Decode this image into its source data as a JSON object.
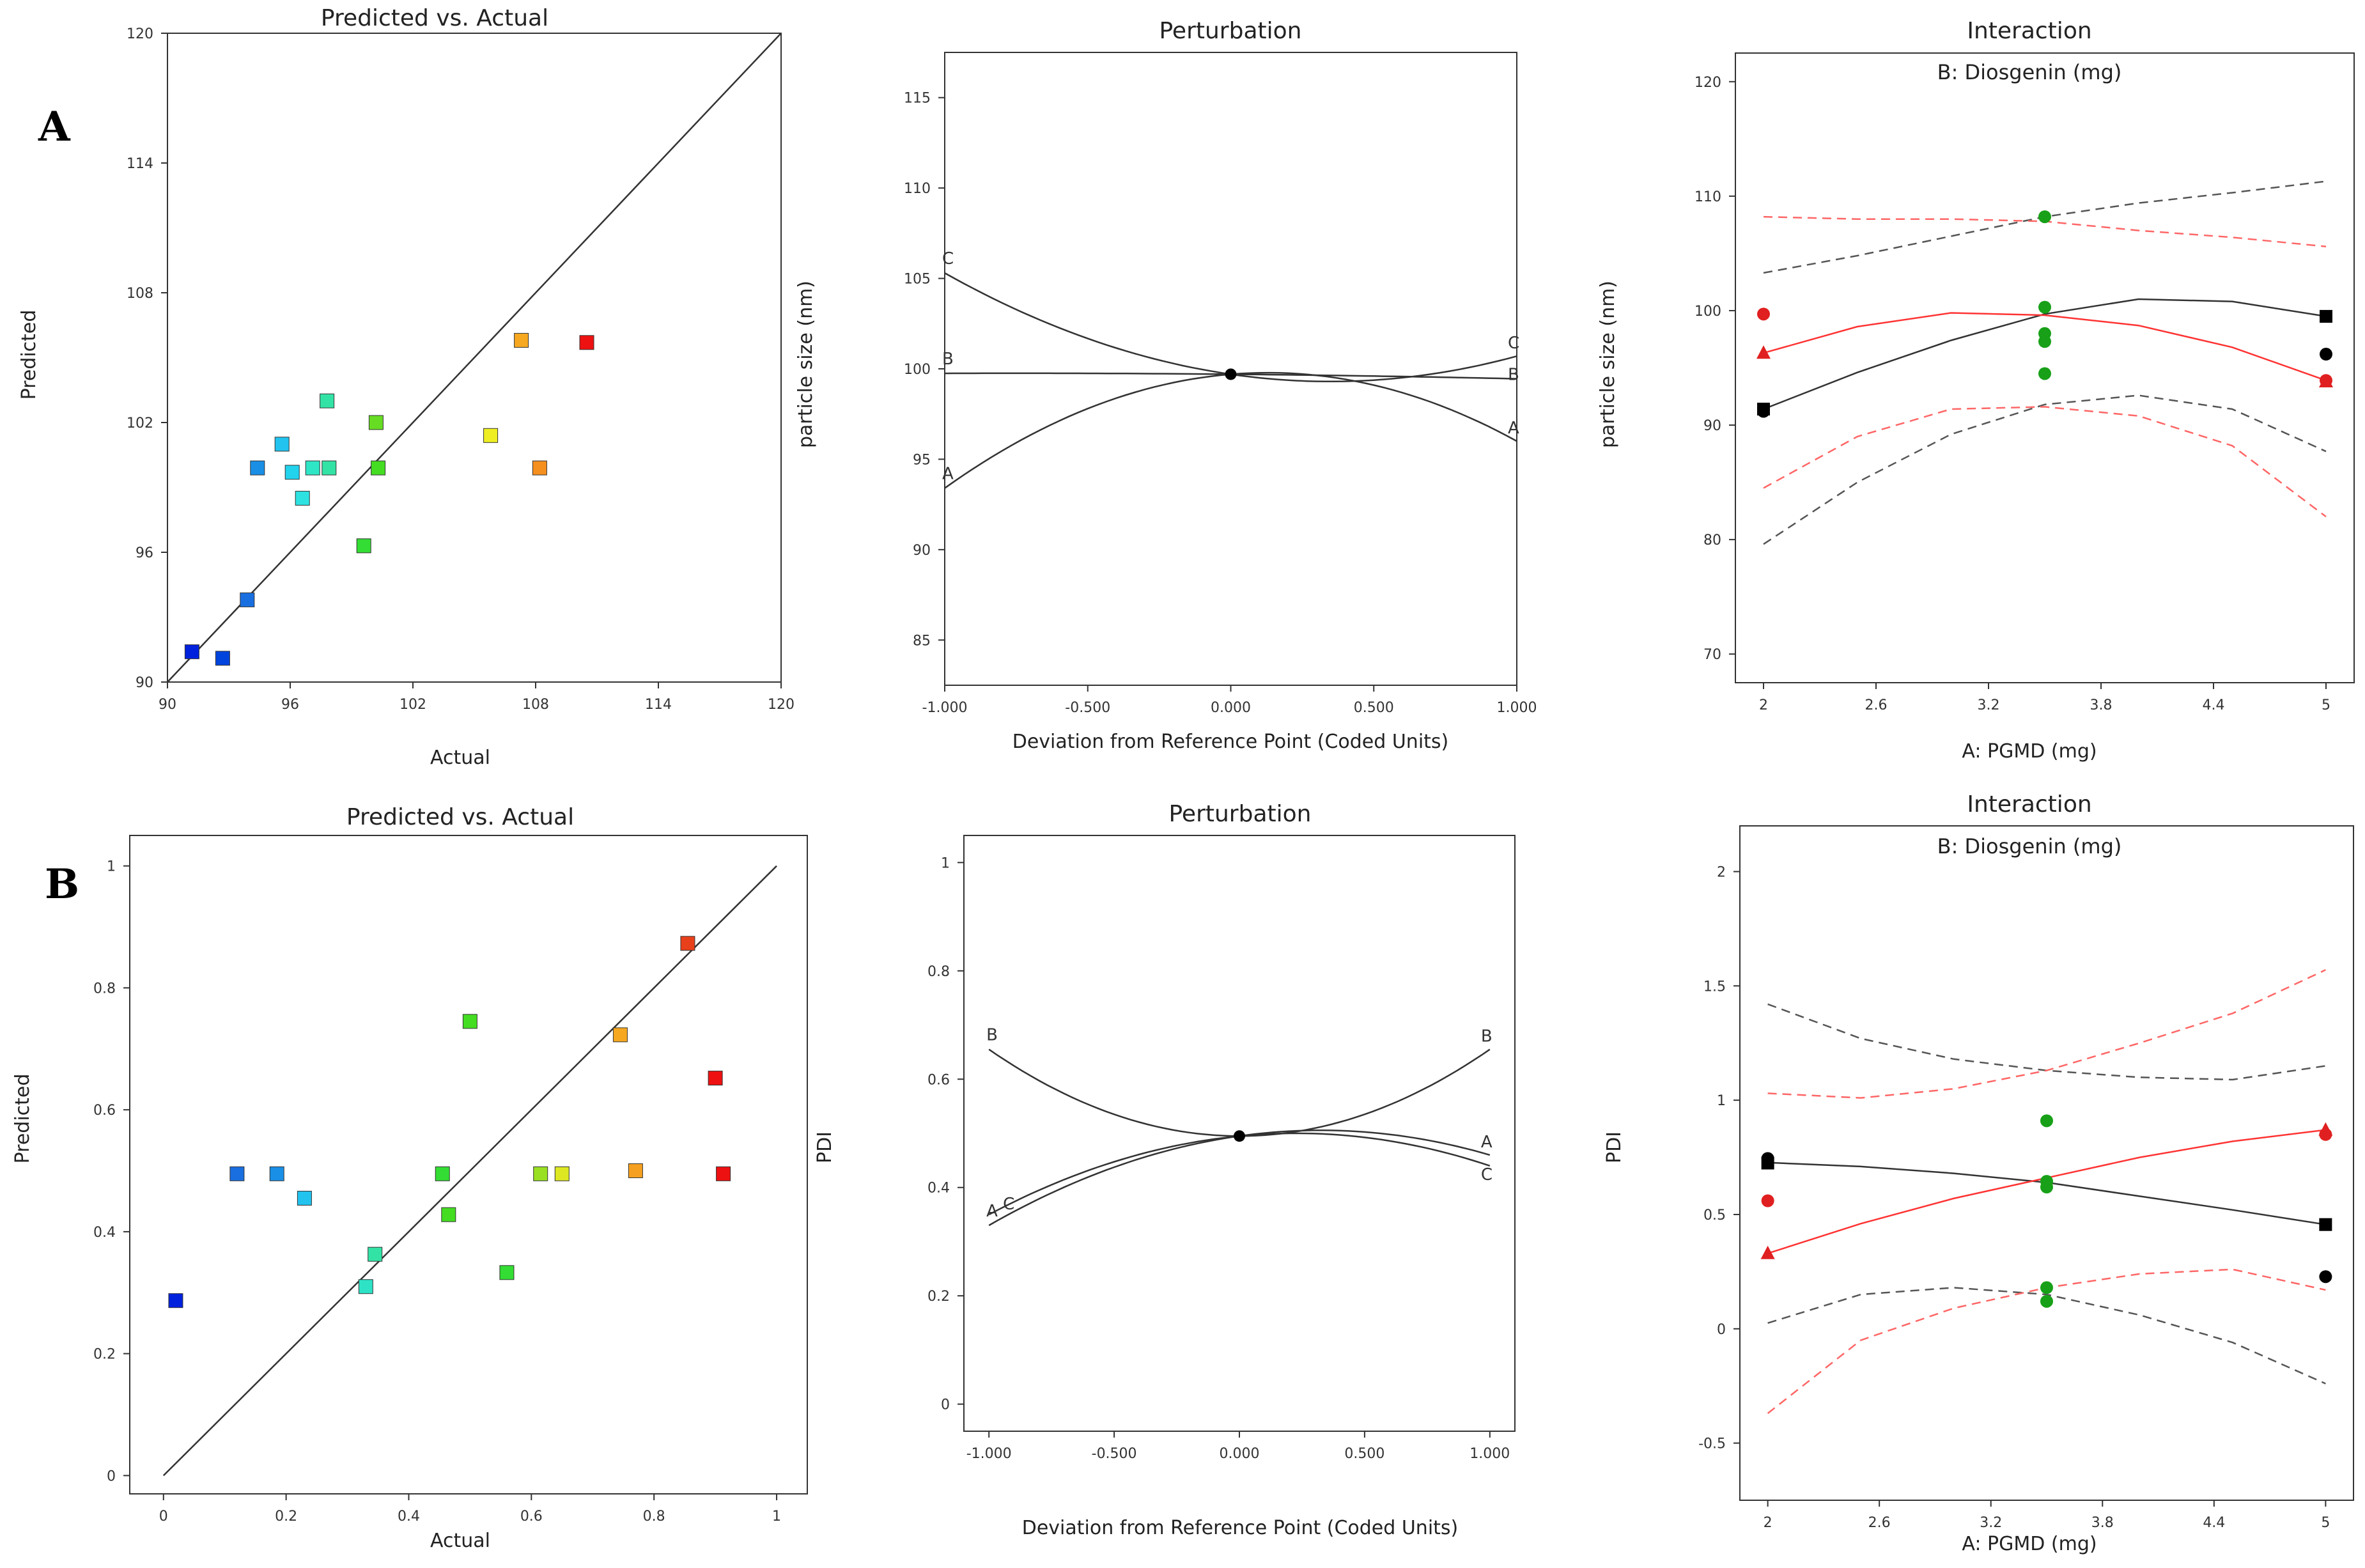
{
  "panel_labels": {
    "A": "A",
    "B": "B"
  },
  "colors": {
    "line": "#333333",
    "red": "#ff3333",
    "red_dash": "#ff6666",
    "black_dash": "#555555",
    "green": "#18a018",
    "black": "#000000",
    "red_marker": "#e02020"
  },
  "chart_data": [
    {
      "id": "A1",
      "type": "scatter",
      "title": "Predicted vs. Actual",
      "xlabel": "Actual",
      "ylabel": "Predicted",
      "xlim": [
        90,
        120
      ],
      "ylim": [
        90,
        120
      ],
      "xticks": [
        90,
        96,
        102,
        108,
        114,
        120
      ],
      "yticks": [
        90,
        96,
        102,
        108,
        114,
        120
      ],
      "tick_labels_x": [
        "90",
        "96",
        "102",
        "108",
        "114",
        "120"
      ],
      "tick_labels_y": [
        "90",
        "96",
        "102",
        "108",
        "114",
        "120"
      ],
      "reference_line": [
        [
          90,
          90
        ],
        [
          120,
          120
        ]
      ],
      "points": [
        {
          "x": 91.2,
          "y": 91.4,
          "color": "#0022dd"
        },
        {
          "x": 92.7,
          "y": 91.1,
          "color": "#0044dd"
        },
        {
          "x": 93.9,
          "y": 93.8,
          "color": "#1a6fe0"
        },
        {
          "x": 94.4,
          "y": 99.9,
          "color": "#1a8fe6"
        },
        {
          "x": 95.6,
          "y": 101.0,
          "color": "#22c3ee"
        },
        {
          "x": 96.1,
          "y": 99.7,
          "color": "#22d3ee"
        },
        {
          "x": 96.6,
          "y": 98.5,
          "color": "#2ee2e2"
        },
        {
          "x": 97.1,
          "y": 99.9,
          "color": "#2ee6c6"
        },
        {
          "x": 97.8,
          "y": 103.0,
          "color": "#33e3a6"
        },
        {
          "x": 97.9,
          "y": 99.9,
          "color": "#33e3a6"
        },
        {
          "x": 99.6,
          "y": 96.3,
          "color": "#33dd33"
        },
        {
          "x": 100.2,
          "y": 102.0,
          "color": "#66dd22"
        },
        {
          "x": 100.3,
          "y": 99.9,
          "color": "#44dd22"
        },
        {
          "x": 105.8,
          "y": 101.4,
          "color": "#eeee22"
        },
        {
          "x": 107.3,
          "y": 105.8,
          "color": "#f5a820"
        },
        {
          "x": 108.2,
          "y": 99.9,
          "color": "#f5901e"
        },
        {
          "x": 110.5,
          "y": 105.7,
          "color": "#ee1111"
        }
      ]
    },
    {
      "id": "A2",
      "type": "line",
      "title": "Perturbation",
      "xlabel": "Deviation from Reference Point (Coded Units)",
      "ylabel": "particle size (nm)",
      "xlim": [
        -1,
        1
      ],
      "ylim": [
        82.5,
        117.5
      ],
      "xticks": [
        -1,
        -0.5,
        0,
        0.5,
        1
      ],
      "yticks": [
        85,
        90,
        95,
        100,
        105,
        110,
        115
      ],
      "tick_labels_x": [
        "-1.000",
        "-0.500",
        "0.000",
        "0.500",
        "1.000"
      ],
      "tick_labels_y": [
        "85",
        "90",
        "95",
        "100",
        "105",
        "110",
        "115"
      ],
      "series": [
        {
          "name": "A",
          "a": -5.0,
          "b": 1.3,
          "c": 99.7,
          "label_start": "A",
          "label_end": "A"
        },
        {
          "name": "B",
          "a": -0.1,
          "b": -0.15,
          "c": 99.7,
          "label_start": "B",
          "label_end": "B"
        },
        {
          "name": "C",
          "a": 3.3,
          "b": -2.3,
          "c": 99.7,
          "label_start": "C",
          "label_end": "C"
        }
      ],
      "center_point": [
        0,
        99.7
      ]
    },
    {
      "id": "A3",
      "type": "line",
      "title": "Interaction",
      "subtitle": "B: Diosgenin (mg)",
      "xlabel": "A: PGMD (mg)",
      "ylabel": "particle size (nm)",
      "xlim": [
        1.85,
        5.15
      ],
      "ylim": [
        67.5,
        122.5
      ],
      "xticks": [
        2,
        2.6,
        3.2,
        3.8,
        4.4,
        5
      ],
      "yticks": [
        70,
        80,
        90,
        100,
        110,
        120
      ],
      "tick_labels_x": [
        "2",
        "2.6",
        "3.2",
        "3.8",
        "4.4",
        "5"
      ],
      "tick_labels_y": [
        "70",
        "80",
        "90",
        "100",
        "110",
        "120"
      ],
      "curves": [
        {
          "name": "black-fit",
          "points": [
            [
              2,
              91.4
            ],
            [
              2.5,
              94.6
            ],
            [
              3,
              97.4
            ],
            [
              3.5,
              99.7
            ],
            [
              4,
              101.0
            ],
            [
              4.5,
              100.8
            ],
            [
              5,
              99.5
            ]
          ],
          "style": "solid",
          "color": "#333333"
        },
        {
          "name": "black-upper",
          "points": [
            [
              2,
              103.3
            ],
            [
              2.5,
              104.8
            ],
            [
              3,
              106.5
            ],
            [
              3.5,
              108.2
            ],
            [
              4,
              109.4
            ],
            [
              4.5,
              110.3
            ],
            [
              5,
              111.3
            ]
          ],
          "style": "dash",
          "color": "#555555"
        },
        {
          "name": "black-lower",
          "points": [
            [
              2,
              79.6
            ],
            [
              2.5,
              85.0
            ],
            [
              3,
              89.2
            ],
            [
              3.5,
              91.8
            ],
            [
              4,
              92.6
            ],
            [
              4.5,
              91.4
            ],
            [
              5,
              87.7
            ]
          ],
          "style": "dash",
          "color": "#555555"
        },
        {
          "name": "red-fit",
          "points": [
            [
              2,
              96.3
            ],
            [
              2.5,
              98.6
            ],
            [
              3,
              99.8
            ],
            [
              3.5,
              99.6
            ],
            [
              4,
              98.7
            ],
            [
              4.5,
              96.8
            ],
            [
              5,
              93.9
            ]
          ],
          "style": "solid",
          "color": "#ff3333"
        },
        {
          "name": "red-upper",
          "points": [
            [
              2,
              108.2
            ],
            [
              2.5,
              108.0
            ],
            [
              3,
              108.0
            ],
            [
              3.5,
              107.8
            ],
            [
              4,
              107.0
            ],
            [
              4.5,
              106.4
            ],
            [
              5,
              105.6
            ]
          ],
          "style": "dash",
          "color": "#ff6666"
        },
        {
          "name": "red-lower",
          "points": [
            [
              2,
              84.5
            ],
            [
              2.5,
              89.0
            ],
            [
              3,
              91.4
            ],
            [
              3.5,
              91.6
            ],
            [
              4,
              90.8
            ],
            [
              4.5,
              88.2
            ],
            [
              5,
              82.0
            ]
          ],
          "style": "dash",
          "color": "#ff6666"
        }
      ],
      "markers": [
        {
          "x": 2,
          "y": 99.7,
          "shape": "circle",
          "color": "#e02020"
        },
        {
          "x": 2,
          "y": 96.3,
          "shape": "triangle",
          "color": "#e02020"
        },
        {
          "x": 2,
          "y": 91.4,
          "shape": "square",
          "color": "#000000"
        },
        {
          "x": 2,
          "y": 91.2,
          "shape": "circle",
          "color": "#000000"
        },
        {
          "x": 3.5,
          "y": 108.2,
          "shape": "circle",
          "color": "#18a018"
        },
        {
          "x": 3.5,
          "y": 100.3,
          "shape": "circle",
          "color": "#18a018"
        },
        {
          "x": 3.5,
          "y": 98.0,
          "shape": "circle",
          "color": "#18a018"
        },
        {
          "x": 3.5,
          "y": 97.3,
          "shape": "circle",
          "color": "#18a018"
        },
        {
          "x": 3.5,
          "y": 94.5,
          "shape": "circle",
          "color": "#18a018"
        },
        {
          "x": 5,
          "y": 99.5,
          "shape": "square",
          "color": "#000000"
        },
        {
          "x": 5,
          "y": 96.2,
          "shape": "circle",
          "color": "#000000"
        },
        {
          "x": 5,
          "y": 93.9,
          "shape": "circle",
          "color": "#e02020"
        },
        {
          "x": 5,
          "y": 93.8,
          "shape": "triangle",
          "color": "#e02020"
        }
      ]
    },
    {
      "id": "B1",
      "type": "scatter",
      "title": "Predicted vs. Actual",
      "xlabel": "Actual",
      "ylabel": "Predicted",
      "xlim": [
        -0.055,
        1.05
      ],
      "ylim": [
        -0.03,
        1.05
      ],
      "xticks": [
        0,
        0.2,
        0.4,
        0.6,
        0.8,
        1
      ],
      "yticks": [
        0,
        0.2,
        0.4,
        0.6,
        0.8,
        1
      ],
      "tick_labels_x": [
        "0",
        "0.2",
        "0.4",
        "0.6",
        "0.8",
        "1"
      ],
      "tick_labels_y": [
        "0",
        "0.2",
        "0.4",
        "0.6",
        "0.8",
        "1"
      ],
      "reference_line": [
        [
          0,
          0
        ],
        [
          1,
          1
        ]
      ],
      "points": [
        {
          "x": 0.02,
          "y": 0.287,
          "color": "#0022dd"
        },
        {
          "x": 0.12,
          "y": 0.495,
          "color": "#1a6fe0"
        },
        {
          "x": 0.185,
          "y": 0.495,
          "color": "#1a8fe6"
        },
        {
          "x": 0.23,
          "y": 0.455,
          "color": "#22c3ee"
        },
        {
          "x": 0.33,
          "y": 0.31,
          "color": "#2ee2c6"
        },
        {
          "x": 0.345,
          "y": 0.363,
          "color": "#33e3a6"
        },
        {
          "x": 0.455,
          "y": 0.495,
          "color": "#33dd33"
        },
        {
          "x": 0.465,
          "y": 0.428,
          "color": "#44dd22"
        },
        {
          "x": 0.5,
          "y": 0.745,
          "color": "#44dd22"
        },
        {
          "x": 0.56,
          "y": 0.333,
          "color": "#33dd33"
        },
        {
          "x": 0.615,
          "y": 0.495,
          "color": "#99e022"
        },
        {
          "x": 0.65,
          "y": 0.495,
          "color": "#dde822"
        },
        {
          "x": 0.745,
          "y": 0.723,
          "color": "#f5a820"
        },
        {
          "x": 0.77,
          "y": 0.5,
          "color": "#f5a020"
        },
        {
          "x": 0.855,
          "y": 0.873,
          "color": "#e8401a"
        },
        {
          "x": 0.9,
          "y": 0.652,
          "color": "#ee1111"
        },
        {
          "x": 0.913,
          "y": 0.495,
          "color": "#ee1111"
        }
      ]
    },
    {
      "id": "B2",
      "type": "line",
      "title": "Perturbation",
      "xlabel": "Deviation from Reference Point (Coded Units)",
      "ylabel": "PDI",
      "xlim": [
        -1.1,
        1.1
      ],
      "ylim": [
        -0.05,
        1.05
      ],
      "xticks": [
        -1,
        -0.5,
        0,
        0.5,
        1
      ],
      "yticks": [
        0,
        0.2,
        0.4,
        0.6,
        0.8,
        1
      ],
      "tick_labels_x": [
        "-1.000",
        "-0.500",
        "0.000",
        "0.500",
        "1.000"
      ],
      "tick_labels_y": [
        "0",
        "0.2",
        "0.4",
        "0.6",
        "0.8",
        "1"
      ],
      "series": [
        {
          "name": "A",
          "a": -0.1,
          "b": 0.065,
          "c": 0.495,
          "label_start": "A",
          "label_end": "A"
        },
        {
          "name": "B",
          "a": 0.16,
          "b": 0.0,
          "c": 0.495,
          "label_start": "B",
          "label_end": "B"
        },
        {
          "name": "C",
          "a": -0.1,
          "b": 0.045,
          "c": 0.495,
          "label_start": "C",
          "label_end": "C"
        }
      ],
      "center_point": [
        0,
        0.495
      ]
    },
    {
      "id": "B3",
      "type": "line",
      "title": "Interaction",
      "subtitle": "B: Diosgenin (mg)",
      "xlabel": "A: PGMD (mg)",
      "ylabel": "PDI",
      "xlim": [
        1.85,
        5.15
      ],
      "ylim": [
        -0.75,
        2.2
      ],
      "xticks": [
        2,
        2.6,
        3.2,
        3.8,
        4.4,
        5
      ],
      "yticks": [
        -0.5,
        0,
        0.5,
        1,
        1.5,
        2
      ],
      "tick_labels_x": [
        "2",
        "2.6",
        "3.2",
        "3.8",
        "4.4",
        "5"
      ],
      "tick_labels_y": [
        "-0.5",
        "0",
        "0.5",
        "1",
        "1.5",
        "2"
      ],
      "curves": [
        {
          "name": "black-fit",
          "points": [
            [
              2,
              0.727
            ],
            [
              2.5,
              0.71
            ],
            [
              3,
              0.68
            ],
            [
              3.5,
              0.64
            ],
            [
              4,
              0.58
            ],
            [
              4.5,
              0.52
            ],
            [
              5,
              0.456
            ]
          ],
          "style": "solid",
          "color": "#333333"
        },
        {
          "name": "black-upper",
          "points": [
            [
              2,
              1.42
            ],
            [
              2.5,
              1.27
            ],
            [
              3,
              1.18
            ],
            [
              3.5,
              1.13
            ],
            [
              4,
              1.1
            ],
            [
              4.5,
              1.09
            ],
            [
              5,
              1.15
            ]
          ],
          "style": "dash",
          "color": "#555555"
        },
        {
          "name": "black-lower",
          "points": [
            [
              2,
              0.025
            ],
            [
              2.5,
              0.15
            ],
            [
              3,
              0.18
            ],
            [
              3.5,
              0.15
            ],
            [
              4,
              0.06
            ],
            [
              4.5,
              -0.06
            ],
            [
              5,
              -0.24
            ]
          ],
          "style": "dash",
          "color": "#555555"
        },
        {
          "name": "red-fit",
          "points": [
            [
              2,
              0.33
            ],
            [
              2.5,
              0.46
            ],
            [
              3,
              0.57
            ],
            [
              3.5,
              0.66
            ],
            [
              4,
              0.75
            ],
            [
              4.5,
              0.82
            ],
            [
              5,
              0.87
            ]
          ],
          "style": "solid",
          "color": "#ff3333"
        },
        {
          "name": "red-upper",
          "points": [
            [
              2,
              1.03
            ],
            [
              2.5,
              1.01
            ],
            [
              3,
              1.05
            ],
            [
              3.5,
              1.13
            ],
            [
              4,
              1.25
            ],
            [
              4.5,
              1.38
            ],
            [
              5,
              1.57
            ]
          ],
          "style": "dash",
          "color": "#ff6666"
        },
        {
          "name": "red-lower",
          "points": [
            [
              2,
              -0.37
            ],
            [
              2.5,
              -0.05
            ],
            [
              3,
              0.09
            ],
            [
              3.5,
              0.18
            ],
            [
              4,
              0.24
            ],
            [
              4.5,
              0.26
            ],
            [
              5,
              0.17
            ]
          ],
          "style": "dash",
          "color": "#ff6666"
        }
      ],
      "markers": [
        {
          "x": 2,
          "y": 0.745,
          "shape": "circle",
          "color": "#000000"
        },
        {
          "x": 2,
          "y": 0.725,
          "shape": "square",
          "color": "#000000"
        },
        {
          "x": 2,
          "y": 0.56,
          "shape": "circle",
          "color": "#e02020"
        },
        {
          "x": 2,
          "y": 0.33,
          "shape": "triangle",
          "color": "#e02020"
        },
        {
          "x": 3.5,
          "y": 0.91,
          "shape": "circle",
          "color": "#18a018"
        },
        {
          "x": 3.5,
          "y": 0.645,
          "shape": "circle",
          "color": "#18a018"
        },
        {
          "x": 3.5,
          "y": 0.62,
          "shape": "circle",
          "color": "#18a018"
        },
        {
          "x": 3.5,
          "y": 0.18,
          "shape": "circle",
          "color": "#18a018"
        },
        {
          "x": 3.5,
          "y": 0.12,
          "shape": "circle",
          "color": "#18a018"
        },
        {
          "x": 5,
          "y": 0.87,
          "shape": "triangle",
          "color": "#e02020"
        },
        {
          "x": 5,
          "y": 0.85,
          "shape": "circle",
          "color": "#e02020"
        },
        {
          "x": 5,
          "y": 0.456,
          "shape": "square",
          "color": "#000000"
        },
        {
          "x": 5,
          "y": 0.228,
          "shape": "circle",
          "color": "#000000"
        }
      ]
    }
  ]
}
